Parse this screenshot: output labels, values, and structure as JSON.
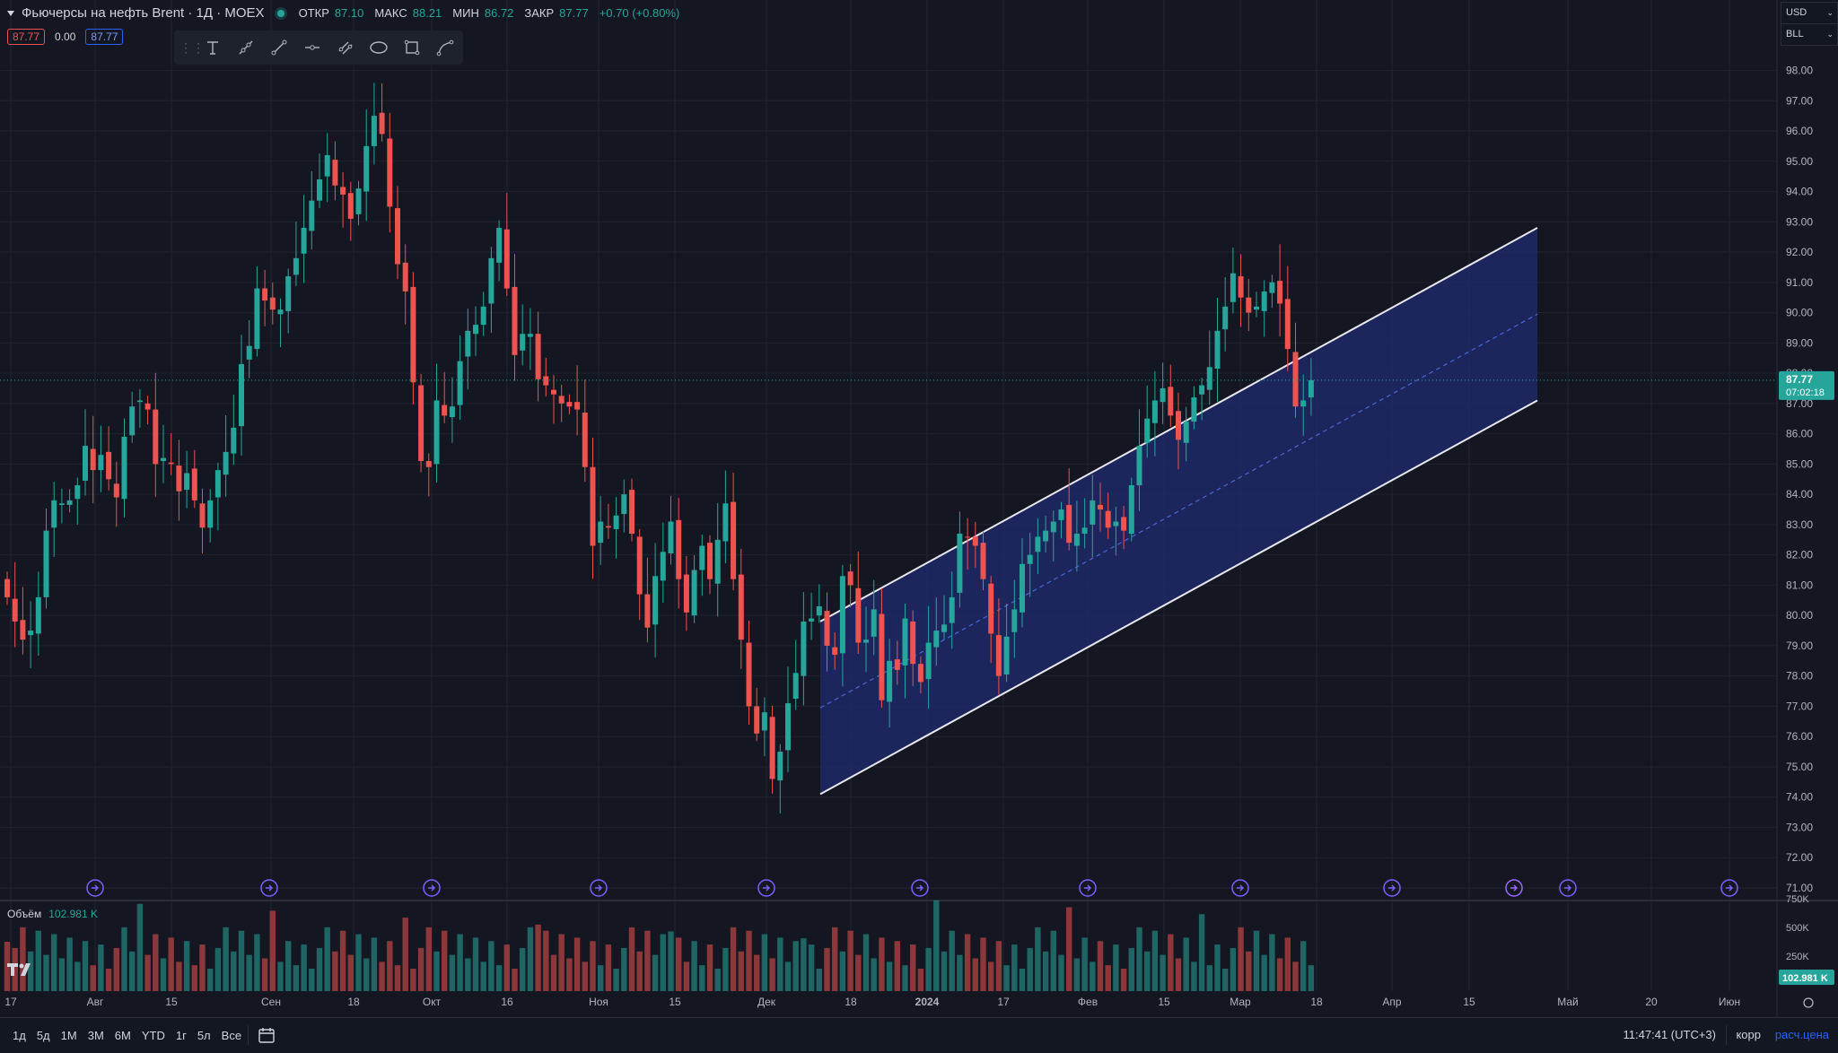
{
  "header": {
    "symbol_title": "Фьючерсы на нефть Brent · 1Д · MOEX",
    "open_label": "ОТКР",
    "open_value": "87.10",
    "high_label": "МАКС",
    "high_value": "88.21",
    "low_label": "МИН",
    "low_value": "86.72",
    "close_label": "ЗАКР",
    "close_value": "87.77",
    "change": "+0.70 (+0.80%)"
  },
  "order_badges": {
    "sell": "87.77",
    "spread": "0.00",
    "buy": "87.77"
  },
  "drawing_tools": [
    "text-tool",
    "ray-tool",
    "trend-line-tool",
    "horizontal-ray-tool",
    "parallel-channel-tool",
    "ellipse-tool",
    "rectangle-tool",
    "path-tool"
  ],
  "top_right": {
    "currency": "USD",
    "unit": "BLL"
  },
  "colors": {
    "up": "#26a69a",
    "down": "#ef5350",
    "background": "#141722",
    "grid": "#1f2331",
    "channel_fill": "#1e2b6b",
    "accent": "#2962ff"
  },
  "chart_data": {
    "type": "candlestick",
    "title": "Фьючерсы на нефть Brent · 1Д · MOEX",
    "ylim": [
      70.5,
      98.8
    ],
    "yticks": [
      "71.00",
      "72.00",
      "73.00",
      "74.00",
      "75.00",
      "76.00",
      "77.00",
      "78.00",
      "79.00",
      "80.00",
      "81.00",
      "82.00",
      "83.00",
      "84.00",
      "85.00",
      "86.00",
      "87.00",
      "88.00",
      "89.00",
      "90.00",
      "91.00",
      "92.00",
      "93.00",
      "94.00",
      "95.00",
      "96.00",
      "97.00",
      "98.00"
    ],
    "xticks": [
      "17",
      "Авг",
      "15",
      "Сен",
      "18",
      "Окт",
      "16",
      "Ноя",
      "15",
      "Дек",
      "18",
      "2024",
      "17",
      "Фев",
      "15",
      "Мар",
      "18",
      "Апр",
      "15",
      "Май",
      "20",
      "Июн"
    ],
    "current_price": "87.77",
    "countdown": "07:02:18",
    "closes": [
      80.6,
      79.8,
      79.2,
      79.5,
      80.6,
      82.8,
      83.8,
      83.7,
      83.8,
      84.3,
      85.6,
      84.8,
      85.3,
      84.5,
      83.9,
      85.9,
      86.9,
      87.1,
      86.8,
      85.0,
      85.2,
      85.0,
      84.1,
      84.7,
      83.8,
      82.9,
      83.8,
      84.8,
      85.4,
      86.2,
      88.3,
      88.9,
      90.8,
      90.4,
      90.1,
      90.1,
      91.2,
      91.8,
      92.8,
      93.7,
      94.4,
      95.2,
      94.2,
      93.9,
      93.1,
      94.1,
      95.5,
      96.5,
      95.9,
      93.5,
      91.6,
      90.7,
      87.7,
      85.1,
      84.9,
      87.1,
      86.6,
      86.9,
      88.4,
      89.4,
      89.6,
      90.2,
      91.8,
      92.8,
      90.8,
      88.6,
      89.3,
      89.3,
      87.8,
      87.6,
      87.3,
      87.0,
      86.9,
      86.8,
      84.9,
      82.3,
      83.1,
      82.9,
      83.3,
      84.0,
      82.7,
      80.7,
      79.6,
      81.3,
      82.1,
      83.1,
      81.2,
      80.1,
      81.5,
      82.3,
      81.2,
      82.5,
      83.7,
      81.2,
      79.2,
      77.0,
      76.1,
      76.8,
      74.6,
      75.5,
      77.1,
      78.1,
      79.8,
      79.9,
      80.3,
      79.0,
      78.7,
      81.3,
      81.0,
      79.1,
      79.2,
      80.2,
      77.2,
      78.5,
      78.2,
      79.9,
      78.4,
      77.8,
      79.1,
      79.5,
      79.7,
      80.6,
      82.7,
      82.6,
      82.3,
      81.2,
      79.4,
      78.0,
      79.3,
      80.2,
      81.7,
      82.0,
      82.6,
      82.8,
      83.1,
      83.5,
      82.4,
      82.7,
      82.9,
      83.8,
      83.5,
      82.9,
      83.1,
      82.8,
      84.3,
      85.6,
      86.5,
      87.1,
      87.5,
      86.6,
      85.8,
      86.4,
      87.2,
      87.6,
      88.2,
      89.4,
      90.2,
      91.3,
      90.5,
      90.0,
      90.2,
      90.7,
      91.0,
      90.3,
      88.8,
      86.9,
      87.1,
      87.77
    ],
    "channel": {
      "lower_start": 74.1,
      "upper_start": 79.8,
      "lower_end": 87.1,
      "upper_end": 92.8
    },
    "volume": {
      "label": "Объём",
      "value": "102.981 K",
      "yticks": [
        "750K",
        "500K",
        "250K"
      ],
      "last_label": "102.981 K"
    }
  },
  "bottom": {
    "ranges": [
      "1д",
      "5д",
      "1М",
      "3М",
      "6М",
      "YTD",
      "1г",
      "5л",
      "Все"
    ],
    "clock": "11:47:41 (UTC+3)",
    "korr": "корр",
    "calc": "расч.цена"
  }
}
